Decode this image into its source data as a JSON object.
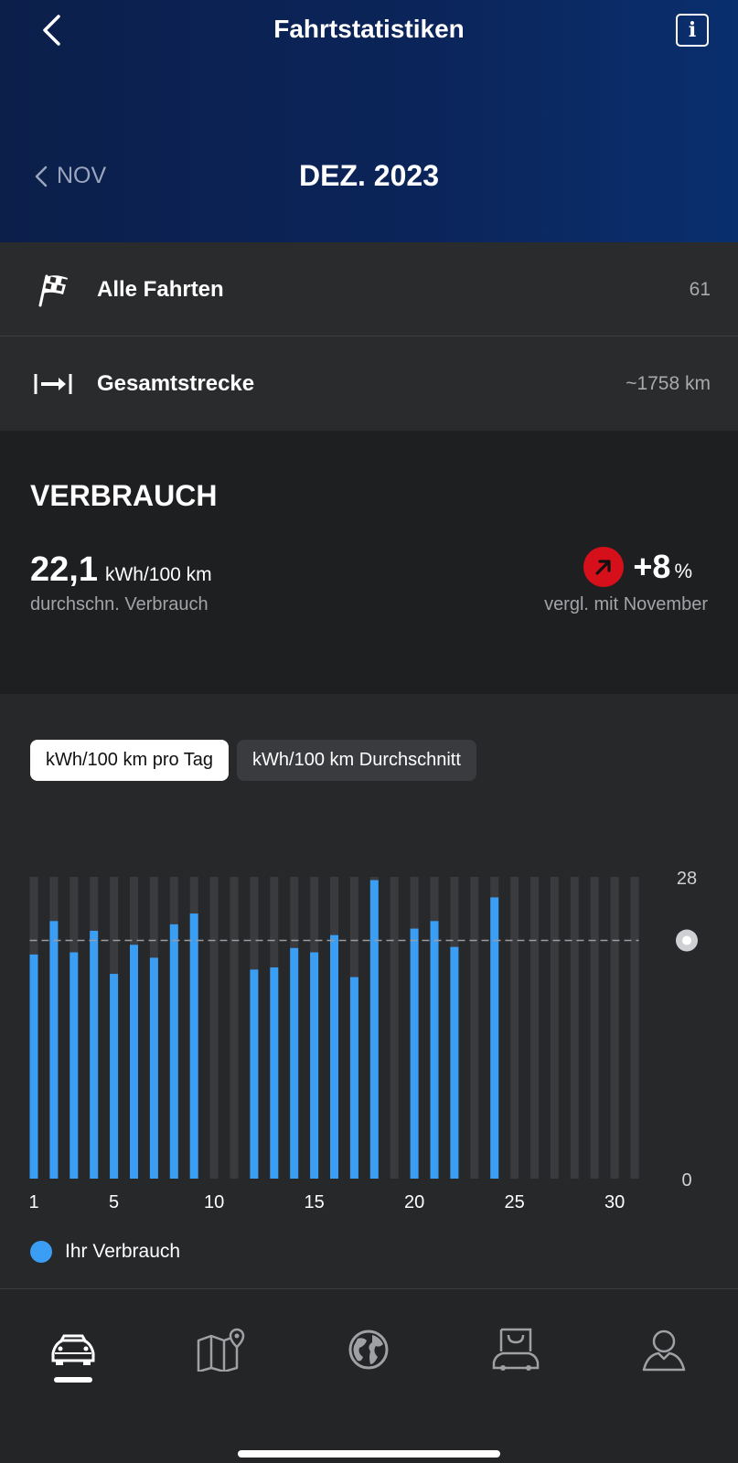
{
  "header": {
    "title": "Fahrtstatistiken",
    "prev_month": "NOV",
    "month": "DEZ. 2023",
    "back_icon": "chevron-left-icon",
    "info_icon": "info-icon",
    "info_glyph": "i"
  },
  "stats": [
    {
      "icon": "checkered-flag-icon",
      "label": "Alle Fahrten",
      "value": "61"
    },
    {
      "icon": "distance-arrow-icon",
      "label": "Gesamtstrecke",
      "value": "~1758 km"
    }
  ],
  "verbrauch": {
    "title": "VERBRAUCH",
    "value": "22,1",
    "unit": "kWh/100 km",
    "subtitle": "durchschn. Verbrauch",
    "change": "+8",
    "change_unit": "%",
    "compare": "vergl. mit November",
    "change_color": "#d6101a"
  },
  "tabs": [
    {
      "label": "kWh/100 km pro Tag",
      "active": true
    },
    {
      "label": "kWh/100 km Durchschnitt",
      "active": false
    }
  ],
  "chart_data": {
    "type": "bar",
    "x": [
      1,
      2,
      3,
      4,
      5,
      6,
      7,
      8,
      9,
      10,
      11,
      12,
      13,
      14,
      15,
      16,
      17,
      18,
      19,
      20,
      21,
      22,
      23,
      24,
      25,
      26,
      27,
      28,
      29,
      30,
      31
    ],
    "values": [
      20.8,
      23.9,
      21.0,
      23.0,
      19.0,
      21.7,
      20.5,
      23.6,
      24.6,
      null,
      null,
      19.4,
      19.6,
      21.4,
      21.0,
      22.6,
      18.7,
      27.7,
      null,
      23.2,
      23.9,
      21.5,
      null,
      26.1,
      null,
      null,
      null,
      null,
      null,
      null,
      null
    ],
    "x_ticks": [
      "1",
      "5",
      "10",
      "15",
      "20",
      "25",
      "30"
    ],
    "x_tick_values": [
      1,
      5,
      10,
      15,
      20,
      25,
      30
    ],
    "ylim": [
      0,
      28
    ],
    "y_ticks": [
      "28",
      "0"
    ],
    "average": 22.1,
    "bar_color": "#3b9ef5",
    "track_color": "#3a3b3e",
    "legend": "Ihr Verbrauch"
  },
  "nav": [
    {
      "icon": "car-icon",
      "active": true
    },
    {
      "icon": "map-pin-icon",
      "active": false
    },
    {
      "icon": "globe-icon",
      "active": false
    },
    {
      "icon": "shop-car-icon",
      "active": false
    },
    {
      "icon": "profile-icon",
      "active": false
    }
  ]
}
